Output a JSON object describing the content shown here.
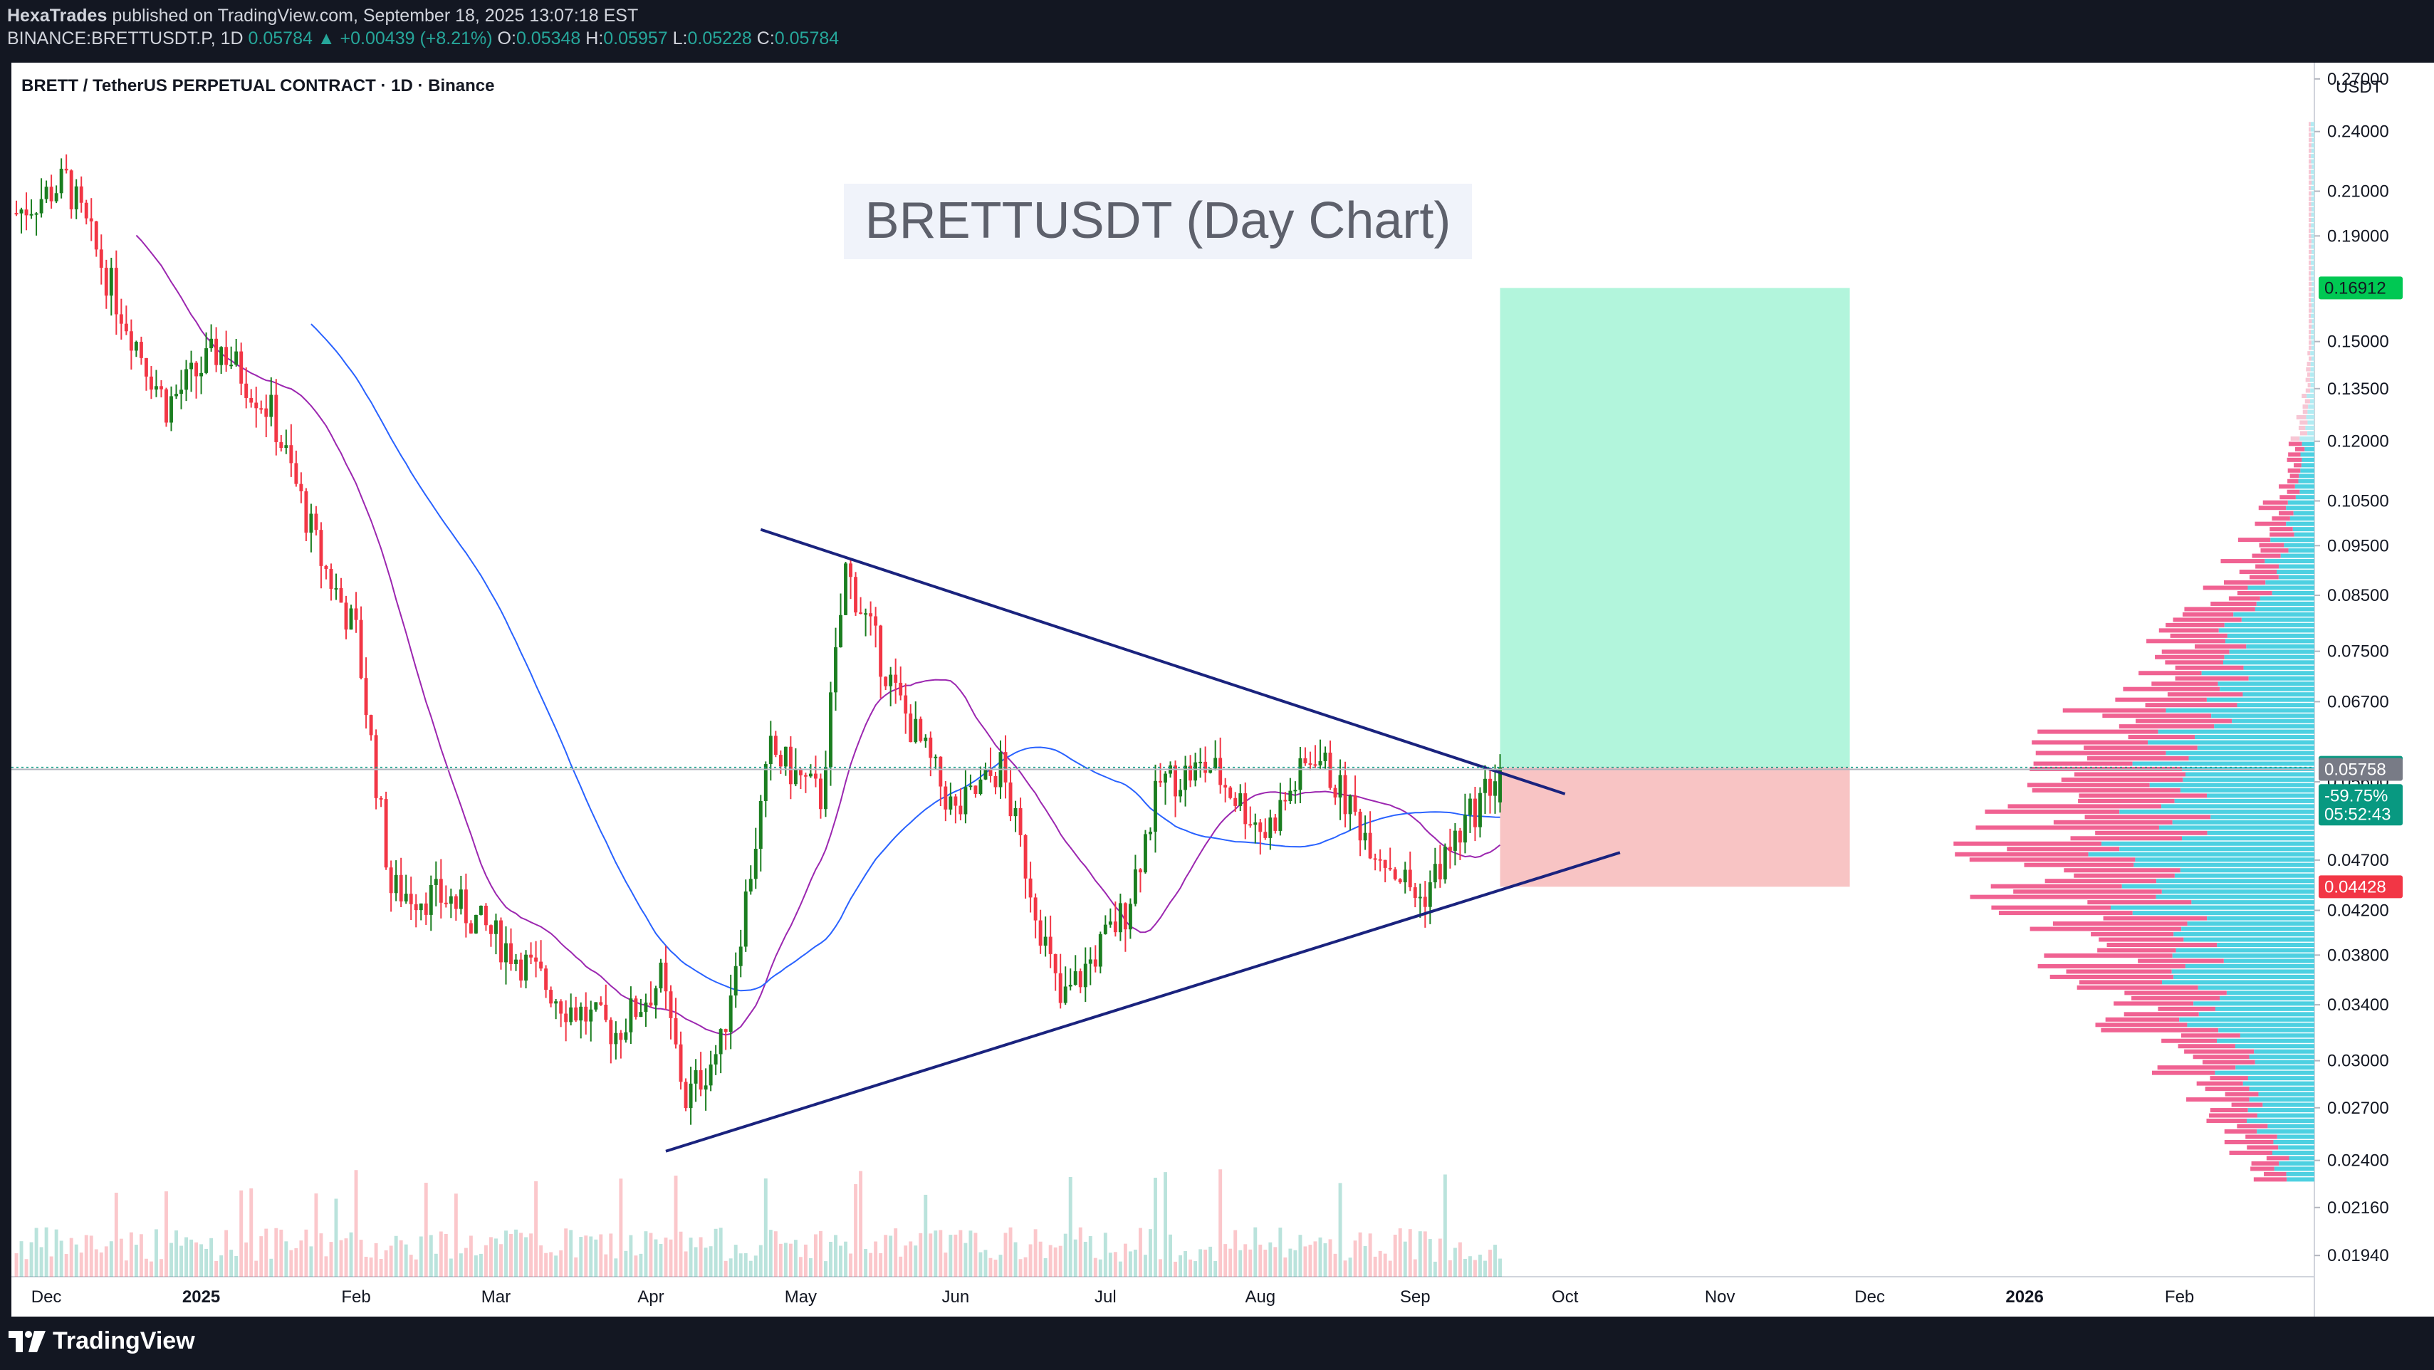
{
  "header": {
    "author": "HexaTrades",
    "published_text": "published on TradingView.com, September 18, 2025 13:07:18 EST",
    "symbol_line": "BINANCE:BRETTUSDT.P, 1D",
    "last": "0.05784",
    "change": "▲ +0.00439 (+8.21%)",
    "o_label": "O:",
    "o": "0.05348",
    "h_label": "H:",
    "h": "0.05957",
    "l_label": "L:",
    "l": "0.05228",
    "c_label": "C:",
    "c": "0.05784"
  },
  "chart_data": {
    "type": "candlestick",
    "instrument_title": "BRETT / TetherUS PERPETUAL CONTRACT · 1D · Binance",
    "annotation_title": "BRETTUSDT (Day Chart)",
    "y_axis_unit": "USDT",
    "y_scale": "log",
    "y_ticks": [
      "0.27000",
      "0.24000",
      "0.21000",
      "0.19000",
      "0.15000",
      "0.13500",
      "0.12000",
      "0.10500",
      "0.09500",
      "0.08500",
      "0.07500",
      "0.06700",
      "0.05600",
      "0.04700",
      "0.04200",
      "0.03800",
      "0.03400",
      "0.03000",
      "0.02700",
      "0.02400",
      "0.02160",
      "0.01940"
    ],
    "x_ticks": [
      "Dec",
      "2025",
      "Feb",
      "Mar",
      "Apr",
      "May",
      "Jun",
      "Jul",
      "Aug",
      "Sep",
      "Oct",
      "Nov",
      "Dec",
      "2026",
      "Feb"
    ],
    "x_ticks_bold": [
      "2025",
      "2026"
    ],
    "x_range": [
      "2024-11-24",
      "2026-02-28"
    ],
    "y_range": [
      0.0185,
      0.28
    ],
    "price_labels": [
      {
        "value": "0.16912",
        "price": 0.16912,
        "color": "#00c853",
        "text_color": "#131722"
      },
      {
        "value": "0.05784",
        "price": 0.05784,
        "color": "#089981",
        "text_color": "#ffffff"
      },
      {
        "value": "-59.75%",
        "price": 0.0543,
        "color": "#089981",
        "text_color": "#ffffff"
      },
      {
        "value": "05:52:43",
        "price": 0.0521,
        "color": "#089981",
        "text_color": "#ffffff"
      },
      {
        "value": "0.05758",
        "price": 0.05758,
        "color": "#787b86",
        "text_color": "#ffffff"
      },
      {
        "value": "0.04428",
        "price": 0.04428,
        "color": "#f23645",
        "text_color": "#ffffff"
      }
    ],
    "ohlc_monthly_path": [
      {
        "date": "2024-11-25",
        "close": 0.2
      },
      {
        "date": "2024-12-05",
        "close": 0.215
      },
      {
        "date": "2024-12-15",
        "close": 0.165
      },
      {
        "date": "2024-12-25",
        "close": 0.13
      },
      {
        "date": "2025-01-05",
        "close": 0.148
      },
      {
        "date": "2025-01-15",
        "close": 0.128
      },
      {
        "date": "2025-01-25",
        "close": 0.092
      },
      {
        "date": "2025-02-01",
        "close": 0.078
      },
      {
        "date": "2025-02-08",
        "close": 0.044
      },
      {
        "date": "2025-02-20",
        "close": 0.043
      },
      {
        "date": "2025-03-05",
        "close": 0.038
      },
      {
        "date": "2025-03-15",
        "close": 0.034
      },
      {
        "date": "2025-03-25",
        "close": 0.032
      },
      {
        "date": "2025-04-03",
        "close": 0.036
      },
      {
        "date": "2025-04-08",
        "close": 0.0275
      },
      {
        "date": "2025-04-15",
        "close": 0.031
      },
      {
        "date": "2025-04-25",
        "close": 0.06
      },
      {
        "date": "2025-05-05",
        "close": 0.054
      },
      {
        "date": "2025-05-10",
        "close": 0.09
      },
      {
        "date": "2025-05-20",
        "close": 0.068
      },
      {
        "date": "2025-06-01",
        "close": 0.052
      },
      {
        "date": "2025-06-10",
        "close": 0.058
      },
      {
        "date": "2025-06-22",
        "close": 0.034
      },
      {
        "date": "2025-07-05",
        "close": 0.042
      },
      {
        "date": "2025-07-12",
        "close": 0.056
      },
      {
        "date": "2025-07-22",
        "close": 0.058
      },
      {
        "date": "2025-08-02",
        "close": 0.05
      },
      {
        "date": "2025-08-12",
        "close": 0.06
      },
      {
        "date": "2025-08-22",
        "close": 0.05
      },
      {
        "date": "2025-09-02",
        "close": 0.043
      },
      {
        "date": "2025-09-10",
        "close": 0.05
      },
      {
        "date": "2025-09-18",
        "close": 0.05784
      }
    ],
    "trendlines": [
      {
        "name": "upper",
        "from": {
          "date": "2025-04-23",
          "price": 0.0985
        },
        "to": {
          "date": "2025-10-01",
          "price": 0.0545
        },
        "color": "#1a237e"
      },
      {
        "name": "lower",
        "from": {
          "date": "2025-04-04",
          "price": 0.0245
        },
        "to": {
          "date": "2025-10-12",
          "price": 0.0478
        },
        "color": "#1a237e"
      }
    ],
    "position_tool": {
      "start": "2025-09-18",
      "end": "2025-11-27",
      "entry": 0.05784,
      "target": 0.16912,
      "stop": 0.04428,
      "target_color": "#b2f5dc",
      "stop_color": "#f8c4c4"
    },
    "moving_averages": [
      {
        "color": "#9c27b0"
      },
      {
        "color": "#2962ff"
      }
    ],
    "volume_profile": true,
    "colors": {
      "up": "#089981",
      "down": "#f23645",
      "up_fill": "#1b7e20",
      "background": "#ffffff"
    }
  },
  "footer": {
    "brand": "TradingView"
  }
}
